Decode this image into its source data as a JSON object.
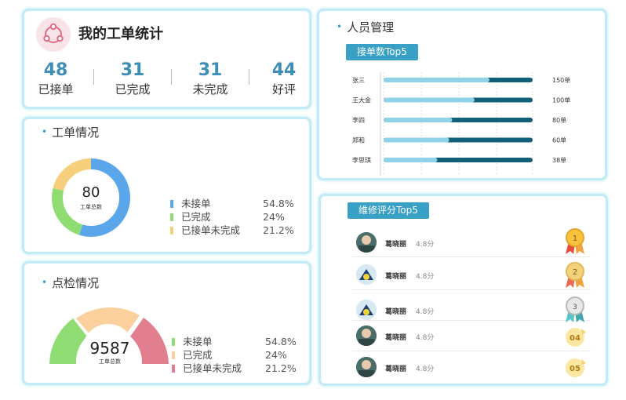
{
  "stats": {
    "title": "我的工单统计",
    "items": [
      {
        "value": "48",
        "label": "已接单"
      },
      {
        "value": "31",
        "label": "已完成"
      },
      {
        "value": "31",
        "label": "未完成"
      },
      {
        "value": "44",
        "label": "好评"
      }
    ],
    "accent": "#3e8fb8"
  },
  "workorder": {
    "title": "工单情况",
    "center_value": "80",
    "center_label": "工单总数",
    "legend": [
      {
        "label": "未接单",
        "pct": "54.8%",
        "color": "#5aa6ea"
      },
      {
        "label": "已完成",
        "pct": "24%",
        "color": "#8fdd72"
      },
      {
        "label": "已接单未完成",
        "pct": "21.2%",
        "color": "#f6cf7c"
      }
    ]
  },
  "inspect": {
    "title": "点检情况",
    "center_value": "9587",
    "center_label": "工单总数",
    "legend": [
      {
        "label": "未接单",
        "pct": "54.8%",
        "color": "#8fdd72"
      },
      {
        "label": "已完成",
        "pct": "24%",
        "color": "#fbd09c"
      },
      {
        "label": "已接单未完成",
        "pct": "21.2%",
        "color": "#e17f8e"
      }
    ]
  },
  "people": {
    "title": "人员管理",
    "tag": "接单数Top5",
    "chart_data": {
      "type": "bar",
      "orientation": "horizontal",
      "categories": [
        "张三",
        "王大金",
        "李四",
        "郑和",
        "李思琪"
      ],
      "values": [
        150,
        100,
        80,
        60,
        38
      ],
      "value_labels": [
        "150单",
        "100单",
        "80单",
        "60单",
        "38单"
      ],
      "light_fraction": [
        0.71,
        0.61,
        0.46,
        0.44,
        0.36
      ],
      "colors": {
        "light": "#90d3e8",
        "dark": "#125f7a"
      }
    }
  },
  "rating": {
    "tag": "维修评分Top5",
    "rows": [
      {
        "name": "葛晓丽",
        "score": "4.8分",
        "rank": "1"
      },
      {
        "name": "葛晓丽",
        "score": "4.8分",
        "rank": "2"
      },
      {
        "name": "葛晓丽",
        "score": "4.8分",
        "rank": "3"
      },
      {
        "name": "葛晓丽",
        "score": "4.8分",
        "rank": "04"
      },
      {
        "name": "葛晓丽",
        "score": "4.8分",
        "rank": "05"
      }
    ]
  }
}
